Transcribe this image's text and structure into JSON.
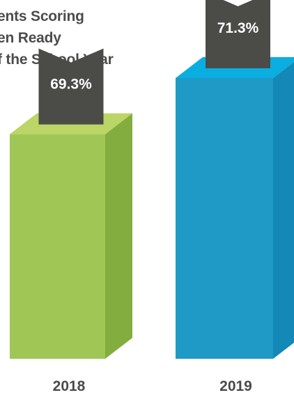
{
  "chart_data": {
    "type": "bar",
    "title_lines": [
      "ents Scoring",
      "en Ready",
      "f the School Year"
    ],
    "categories": [
      "2018",
      "2019"
    ],
    "values": [
      69.3,
      71.3
    ],
    "value_labels": [
      "69.3%",
      "71.3%"
    ],
    "value_suffix": "%",
    "colors": {
      "2018": {
        "front": "#a0c655",
        "top": "#bbd566",
        "side": "#84ad3f"
      },
      "2019": {
        "front": "#1f9ac7",
        "top": "#0aaee0",
        "side": "#1488b6"
      },
      "label_ribbon": "#4b4b48"
    },
    "xlabel": "",
    "ylabel": ""
  }
}
